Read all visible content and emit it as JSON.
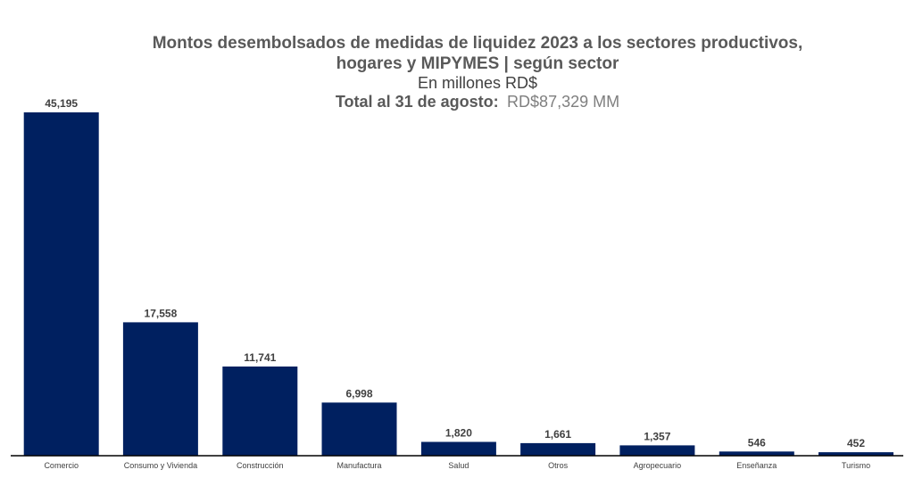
{
  "chart_data": {
    "type": "bar",
    "title_line1": "Montos desembolsados de medidas de liquidez 2023 a los sectores productivos,",
    "title_line2": "hogares y MIPYMES | según sector",
    "subtitle": "En millones RD$",
    "total_label": "Total al 31 de agosto:",
    "total_value": "RD$87,329 MM",
    "categories": [
      "Comercio",
      "Consumo y Vivienda",
      "Construcción",
      "Manufactura",
      "Salud",
      "Otros",
      "Agropecuario",
      "Enseñanza",
      "Turismo"
    ],
    "values": [
      45195,
      17558,
      11741,
      6998,
      1820,
      1661,
      1357,
      546,
      452
    ],
    "value_labels": [
      "45,195",
      "17,558",
      "11,741",
      "6,998",
      "1,820",
      "1,661",
      "1,357",
      "546",
      "452"
    ],
    "ylim": [
      0,
      45195
    ],
    "bar_color": "#002060",
    "grid": false,
    "legend": "none"
  }
}
